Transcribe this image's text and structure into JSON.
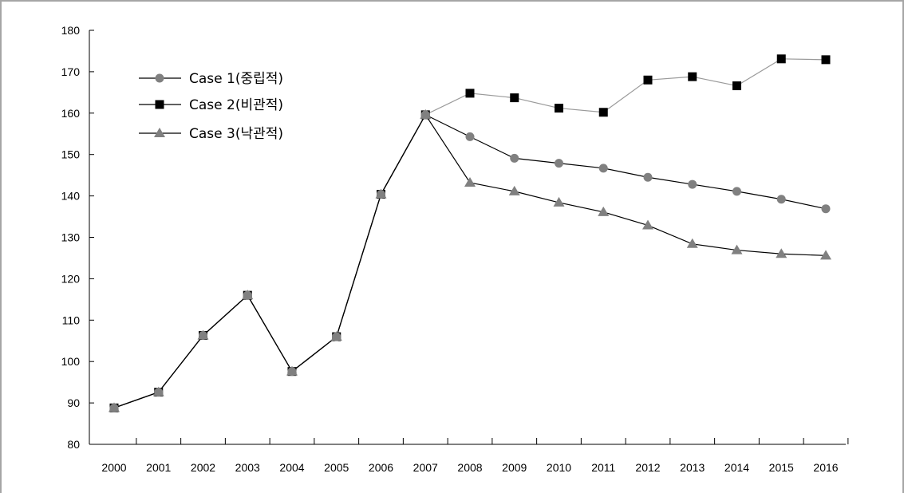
{
  "chart_data": {
    "type": "line",
    "title": "",
    "xlabel": "",
    "ylabel": "",
    "ylim": [
      80,
      180
    ],
    "yticks": [
      80,
      90,
      100,
      110,
      120,
      130,
      140,
      150,
      160,
      170,
      180
    ],
    "grid": false,
    "legend_position": "top-left",
    "categories": [
      "2000",
      "2001",
      "2002",
      "2003",
      "2004",
      "2005",
      "2006",
      "2007",
      "2008",
      "2009",
      "2010",
      "2011",
      "2012",
      "2013",
      "2014",
      "2015",
      "2016"
    ],
    "series": [
      {
        "name": "Case 1(중립적)",
        "marker": "circle",
        "color": "#808080",
        "values": [
          88.8,
          92.6,
          106.3,
          116.0,
          97.6,
          106.0,
          140.4,
          159.6,
          154.3,
          149.1,
          147.9,
          146.7,
          144.5,
          142.8,
          141.1,
          139.2,
          136.9
        ]
      },
      {
        "name": "Case 2(비관적)",
        "marker": "square",
        "color": "#000000",
        "values": [
          88.8,
          92.6,
          106.3,
          116.0,
          97.6,
          106.0,
          140.4,
          159.6,
          164.8,
          163.7,
          161.2,
          160.2,
          168.0,
          168.8,
          166.6,
          173.1,
          172.9
        ]
      },
      {
        "name": "Case 3(낙관적)",
        "marker": "triangle",
        "color": "#808080",
        "values": [
          88.8,
          92.6,
          106.3,
          116.0,
          97.6,
          106.0,
          140.4,
          159.6,
          143.2,
          141.1,
          138.4,
          136.1,
          132.9,
          128.4,
          126.9,
          126.0,
          125.6
        ]
      }
    ]
  }
}
